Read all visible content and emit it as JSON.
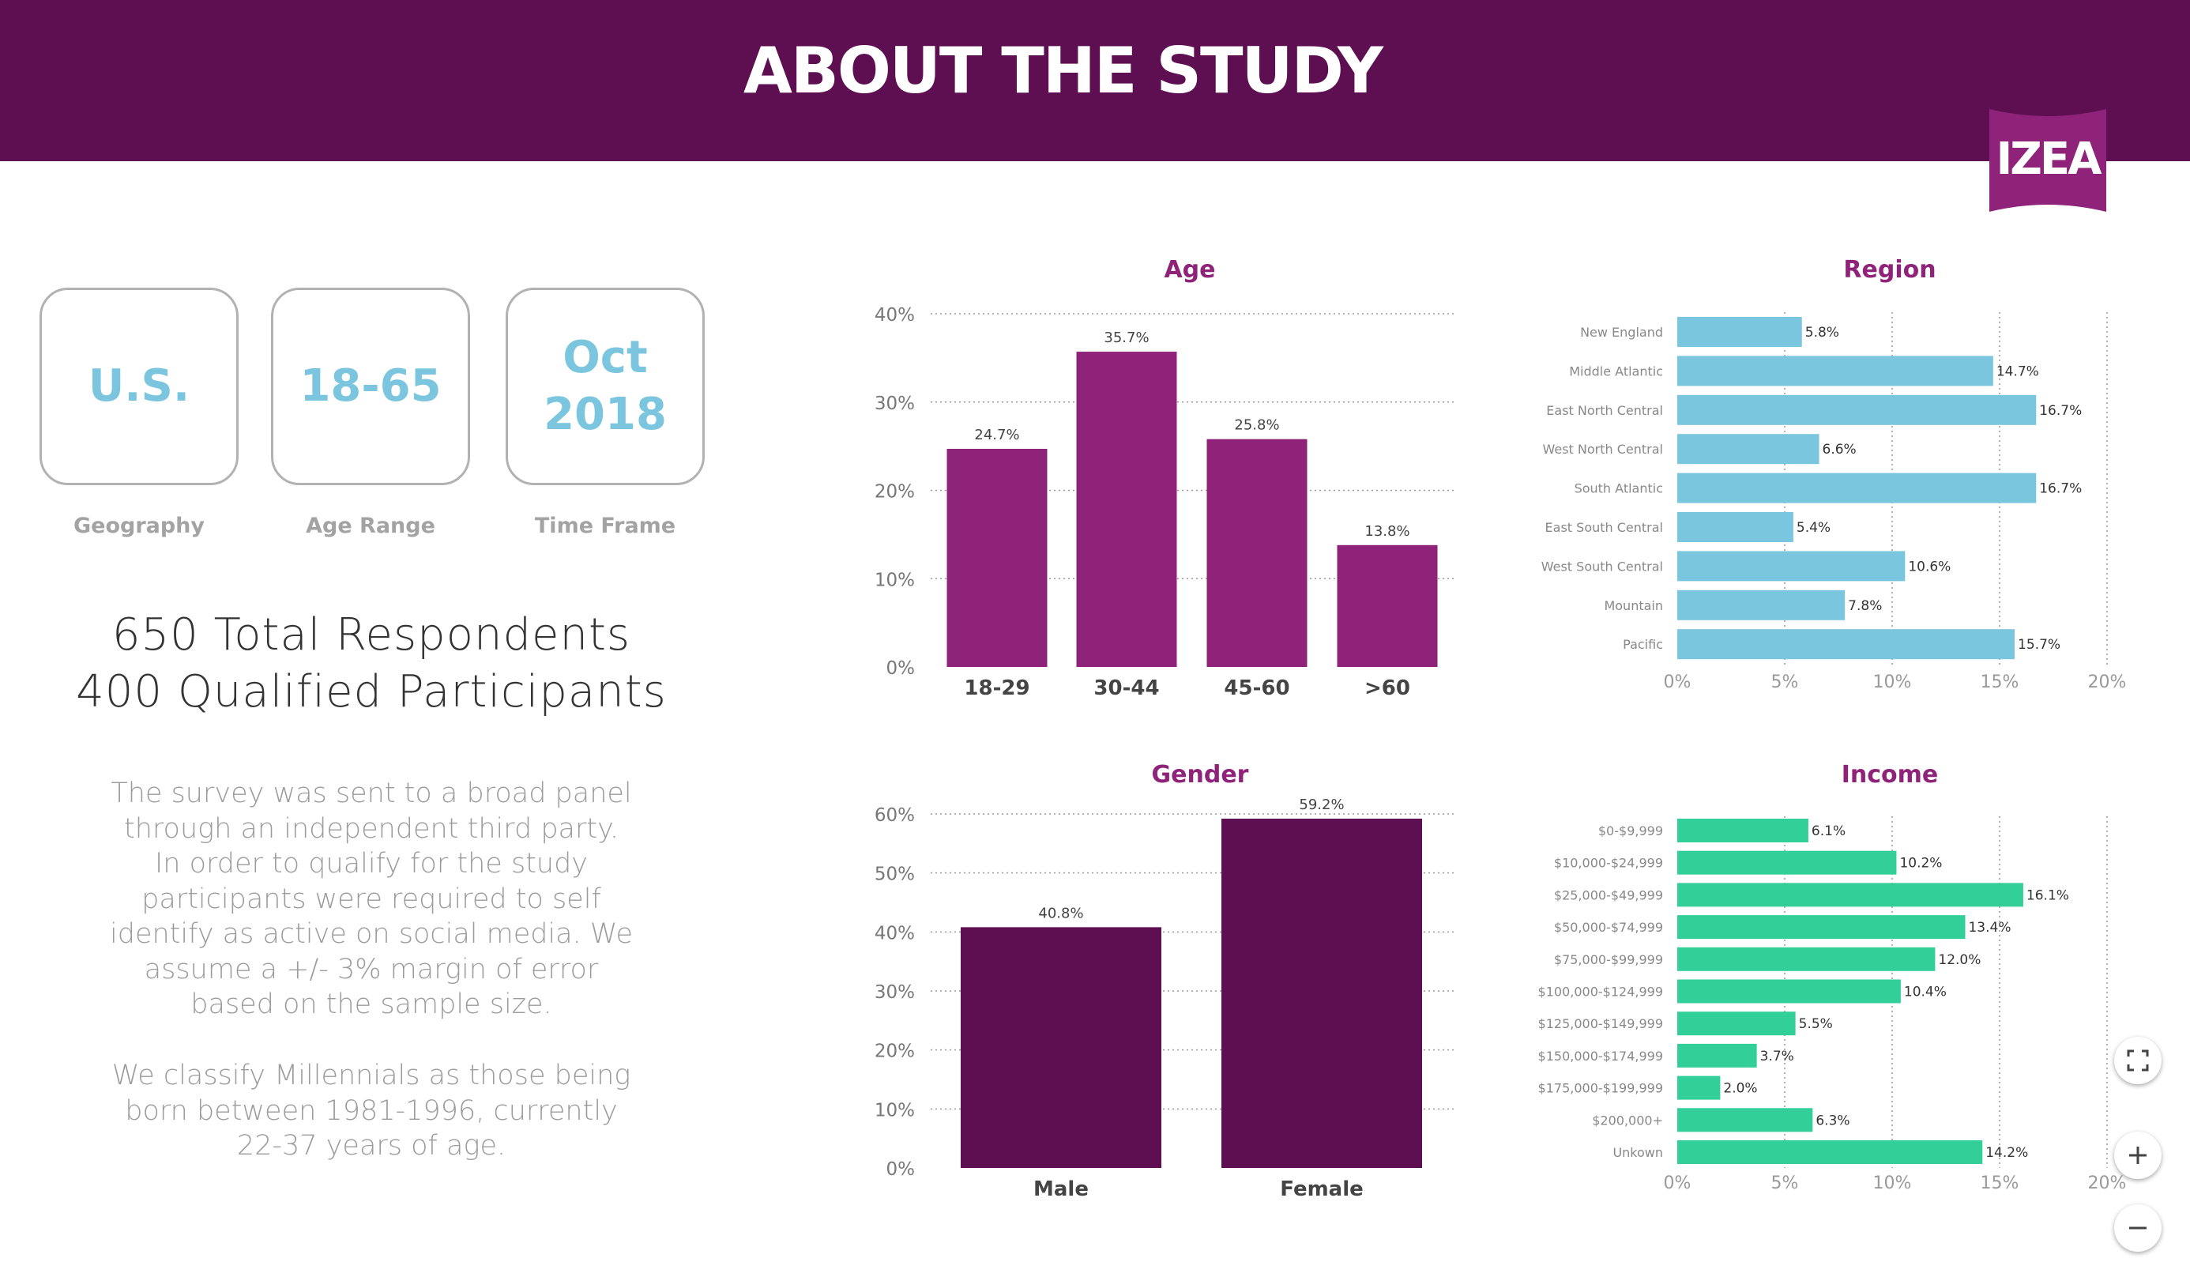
{
  "header": {
    "title": "ABOUT THE STUDY",
    "logo_text": "IZEA",
    "bg_color": "#5e0f52"
  },
  "stats": [
    {
      "value_line1": "U.S.",
      "value_line2": "",
      "label": "Geography"
    },
    {
      "value_line1": "18-65",
      "value_line2": "",
      "label": "Age Range"
    },
    {
      "value_line1": "Oct",
      "value_line2": "2018",
      "label": "Time Frame"
    }
  ],
  "respondents": {
    "line1": "650 Total Respondents",
    "line2": "400 Qualified Participants"
  },
  "description": {
    "p1": [
      "The survey was sent to a broad panel",
      "through an independent third party.",
      "In order to qualify for the study",
      "participants were required to self",
      "identify as active on social media. We",
      "assume a +/- 3% margin of error",
      "based on the sample size."
    ],
    "p2": [
      "We classify Millennials as those being",
      "born between 1981-1996, currently",
      "22-37 years of age."
    ]
  },
  "colors": {
    "age_bar": "#8e2379",
    "gender_bar": "#5e0f52",
    "region_bar": "#7ac6df",
    "income_bar": "#33cf99",
    "title": "#8e2379",
    "axis_text": "#777777",
    "stat_value": "#7bc6de"
  },
  "controls": {
    "fullscreen_icon": "expand-icon",
    "zoom_in_icon": "plus-icon",
    "zoom_out_icon": "minus-icon"
  },
  "chart_data": [
    {
      "id": "age",
      "type": "bar",
      "title": "Age",
      "categories": [
        "18-29",
        "30-44",
        "45-60",
        ">60"
      ],
      "values": [
        24.7,
        35.7,
        25.8,
        13.8
      ],
      "value_labels": [
        "24.7%",
        "35.7%",
        "25.8%",
        "13.8%"
      ],
      "ylim": [
        0,
        40
      ],
      "yticks": [
        0,
        10,
        20,
        30,
        40
      ],
      "ytick_labels": [
        "0%",
        "10%",
        "20%",
        "30%",
        "40%"
      ],
      "grid": true
    },
    {
      "id": "region",
      "type": "bar",
      "orientation": "horizontal",
      "title": "Region",
      "categories": [
        "New England",
        "Middle Atlantic",
        "East North Central",
        "West North Central",
        "South Atlantic",
        "East South Central",
        "West South Central",
        "Mountain",
        "Pacific"
      ],
      "values": [
        5.8,
        14.7,
        16.7,
        6.6,
        16.7,
        5.4,
        10.6,
        7.8,
        15.7
      ],
      "value_labels": [
        "5.8%",
        "14.7%",
        "16.7%",
        "6.6%",
        "16.7%",
        "5.4%",
        "10.6%",
        "7.8%",
        "15.7%"
      ],
      "xlim": [
        0,
        20
      ],
      "xticks": [
        0,
        5,
        10,
        15,
        20
      ],
      "xtick_labels": [
        "0%",
        "5%",
        "10%",
        "15%",
        "20%"
      ],
      "grid": true
    },
    {
      "id": "gender",
      "type": "bar",
      "title": "Gender",
      "categories": [
        "Male",
        "Female"
      ],
      "values": [
        40.8,
        59.2
      ],
      "value_labels": [
        "40.8%",
        "59.2%"
      ],
      "ylim": [
        0,
        60
      ],
      "yticks": [
        0,
        10,
        20,
        30,
        40,
        50,
        60
      ],
      "ytick_labels": [
        "0%",
        "10%",
        "20%",
        "30%",
        "40%",
        "50%",
        "60%"
      ],
      "grid": true
    },
    {
      "id": "income",
      "type": "bar",
      "orientation": "horizontal",
      "title": "Income",
      "categories": [
        "$0-$9,999",
        "$10,000-$24,999",
        "$25,000-$49,999",
        "$50,000-$74,999",
        "$75,000-$99,999",
        "$100,000-$124,999",
        "$125,000-$149,999",
        "$150,000-$174,999",
        "$175,000-$199,999",
        "$200,000+",
        "Unkown"
      ],
      "values": [
        6.1,
        10.2,
        16.1,
        13.4,
        12.0,
        10.4,
        5.5,
        3.7,
        2.0,
        6.3,
        14.2
      ],
      "value_labels": [
        "6.1%",
        "10.2%",
        "16.1%",
        "13.4%",
        "12.0%",
        "10.4%",
        "5.5%",
        "3.7%",
        "2.0%",
        "6.3%",
        "14.2%"
      ],
      "xlim": [
        0,
        20
      ],
      "xticks": [
        0,
        5,
        10,
        15,
        20
      ],
      "xtick_labels": [
        "0%",
        "5%",
        "10%",
        "15%",
        "20%"
      ],
      "grid": true
    }
  ]
}
